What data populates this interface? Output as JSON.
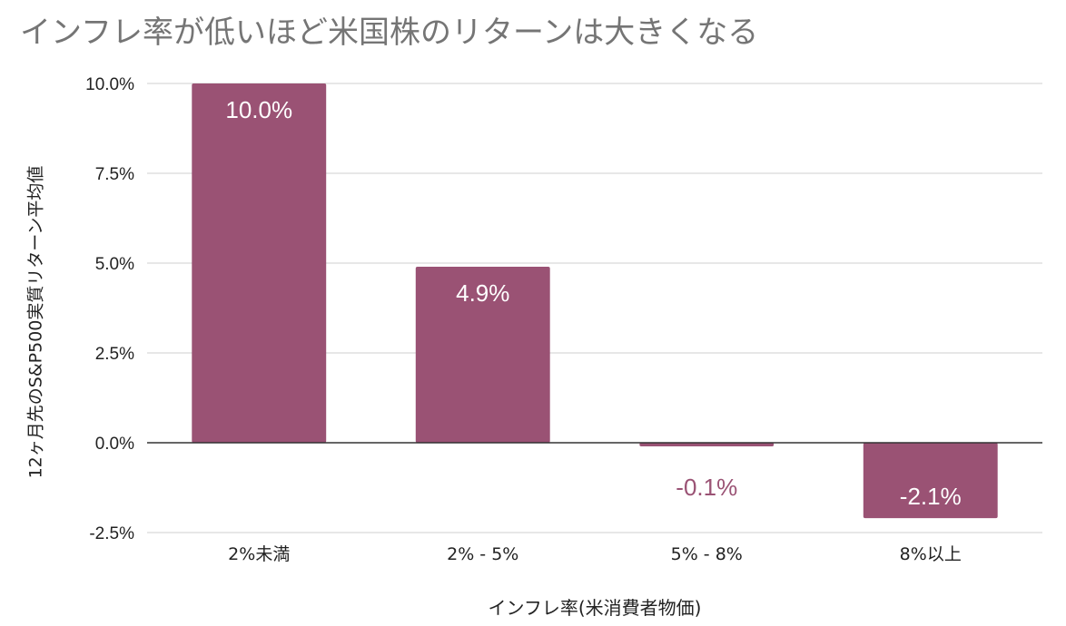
{
  "chart_data": {
    "type": "bar",
    "title": "インフレ率が低いほど米国株のリターンは大きくなる",
    "xlabel": "インフレ率(米消費者物価)",
    "ylabel": "12ヶ月先のS&P500実質リターン平均値",
    "categories": [
      "2%未満",
      "2% - 5%",
      "5% - 8%",
      "8%以上"
    ],
    "values": [
      10.0,
      4.9,
      -0.1,
      -2.1
    ],
    "data_labels": [
      "10.0%",
      "4.9%",
      "-0.1%",
      "-2.1%"
    ],
    "ylim": [
      -2.5,
      10.0
    ],
    "yticks": [
      10.0,
      7.5,
      5.0,
      2.5,
      0.0,
      -2.5
    ],
    "ytick_labels": [
      "10.0%",
      "7.5%",
      "5.0%",
      "2.5%",
      "0.0%",
      "-2.5%"
    ],
    "grid": true,
    "legend": "none",
    "bar_color": "#9a5274",
    "label_inside_color": "#ffffff",
    "label_outside_color": "#9a5274"
  }
}
